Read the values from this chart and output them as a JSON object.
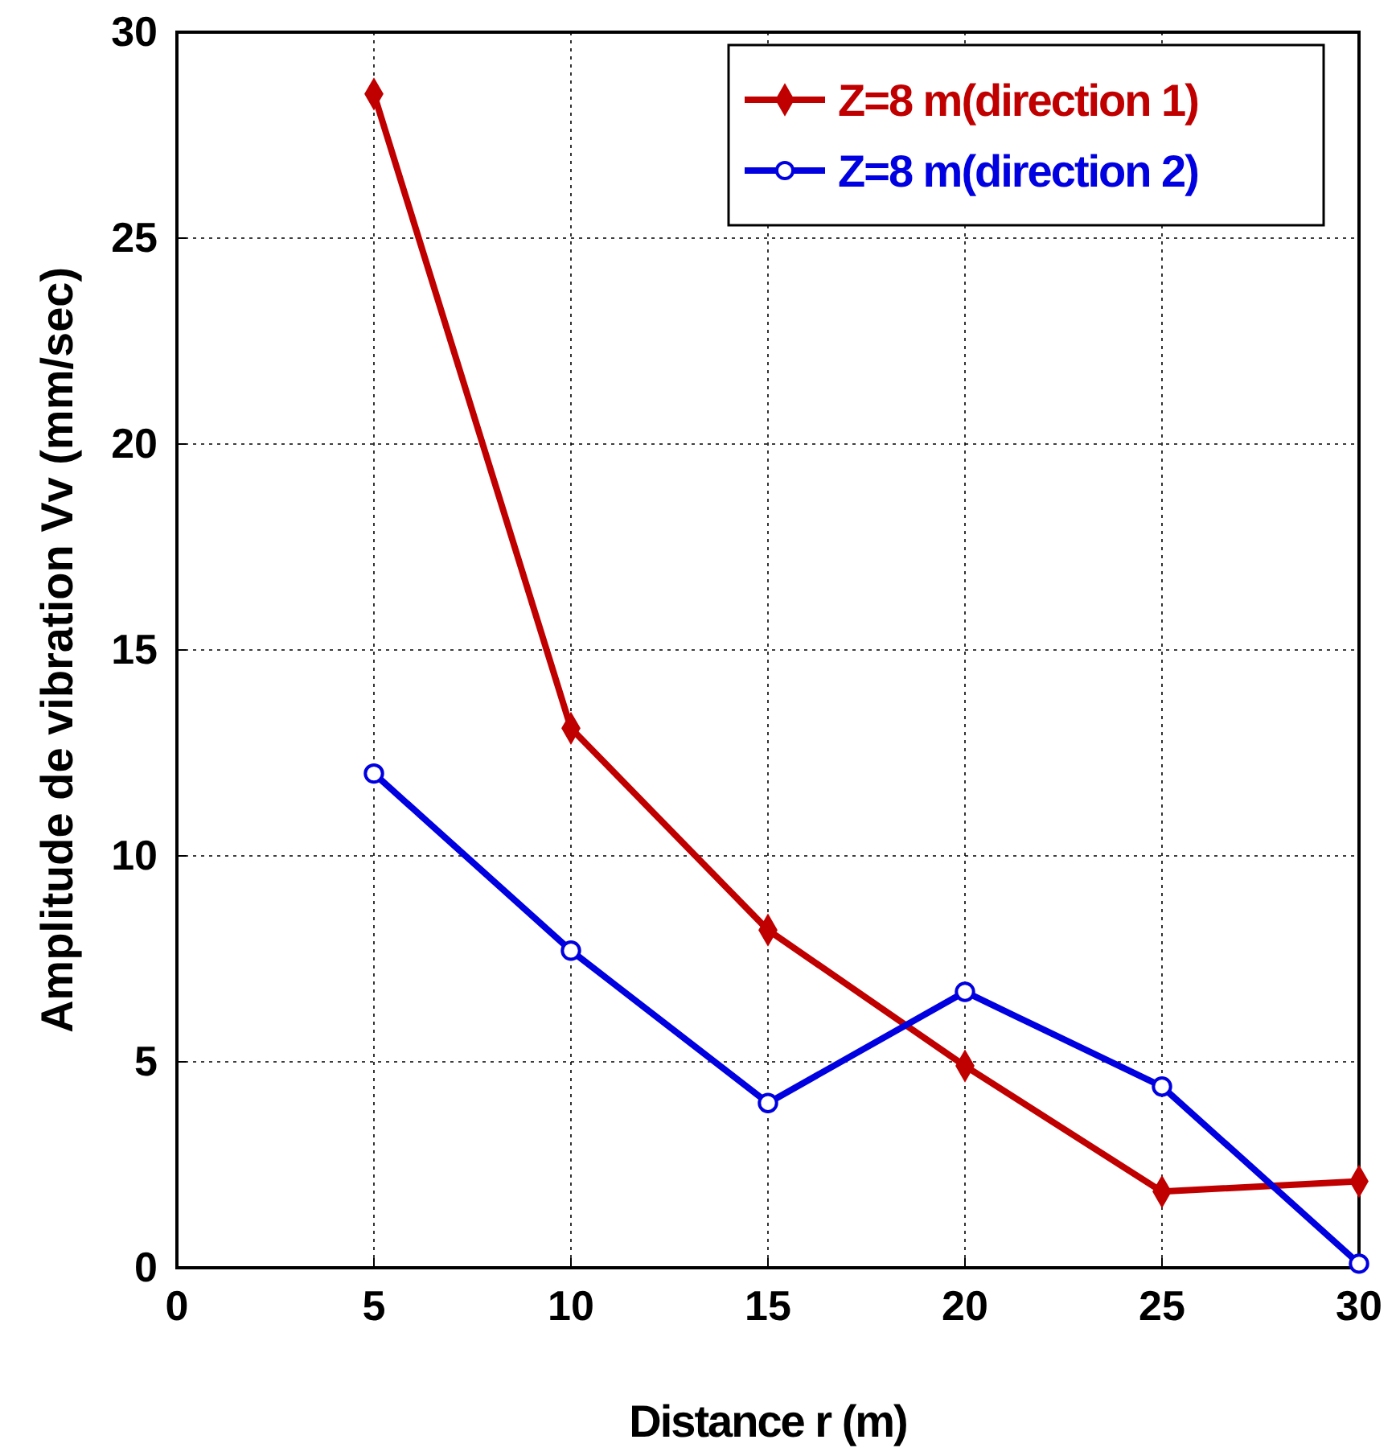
{
  "chart_data": {
    "type": "line",
    "xlabel": "Distance r (m)",
    "ylabel": "Amplitude de vibration Vv (mm/sec)",
    "x": [
      5,
      10,
      15,
      20,
      25,
      30
    ],
    "series": [
      {
        "name": "Z=8 m(direction 1)",
        "color": "#c00000",
        "marker": "diamond",
        "values": [
          28.5,
          13.1,
          8.2,
          4.9,
          1.85,
          2.1
        ]
      },
      {
        "name": "Z=8 m(direction 2)",
        "color": "#0000e0",
        "marker": "circle",
        "values": [
          12.0,
          7.7,
          4.0,
          6.7,
          4.4,
          0.1
        ]
      }
    ],
    "xlim": [
      0,
      30
    ],
    "xticks": [
      0,
      5,
      10,
      15,
      20,
      25,
      30
    ],
    "ylim": [
      0,
      30
    ],
    "yticks": [
      0,
      5,
      10,
      15,
      20,
      25,
      30
    ],
    "grid": true,
    "legend": "top right",
    "line_style": "solid"
  }
}
